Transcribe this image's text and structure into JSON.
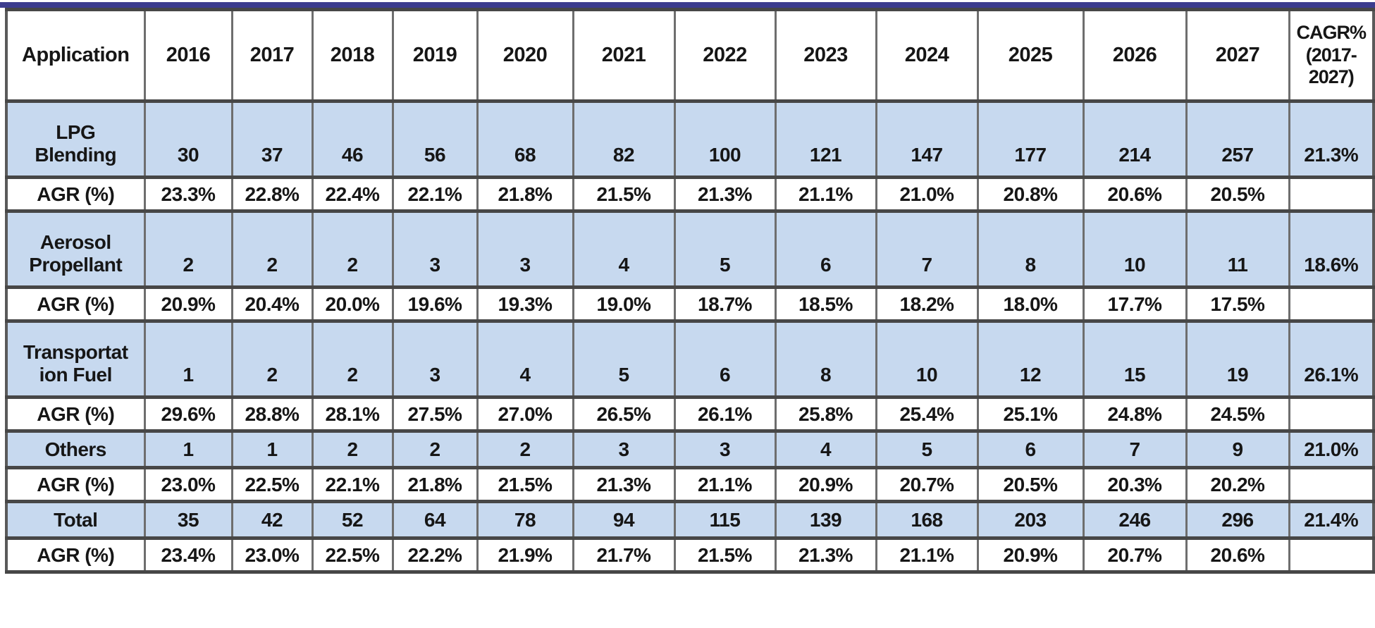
{
  "chart_data": {
    "type": "table",
    "title": "",
    "columns": [
      "Application",
      "2016",
      "2017",
      "2018",
      "2019",
      "2020",
      "2021",
      "2022",
      "2023",
      "2024",
      "2025",
      "2026",
      "2027",
      "CAGR%\n(2017-\n2027)"
    ],
    "rows": [
      {
        "label": "LPG\nBlending",
        "kind": "data",
        "values": [
          "30",
          "37",
          "46",
          "56",
          "68",
          "82",
          "100",
          "121",
          "147",
          "177",
          "214",
          "257"
        ],
        "cagr": "21.3%"
      },
      {
        "label": "AGR (%)",
        "kind": "agr",
        "values": [
          "23.3%",
          "22.8%",
          "22.4%",
          "22.1%",
          "21.8%",
          "21.5%",
          "21.3%",
          "21.1%",
          "21.0%",
          "20.8%",
          "20.6%",
          "20.5%"
        ],
        "cagr": ""
      },
      {
        "label": "Aerosol\nPropellant",
        "kind": "data",
        "values": [
          "2",
          "2",
          "2",
          "3",
          "3",
          "4",
          "5",
          "6",
          "7",
          "8",
          "10",
          "11"
        ],
        "cagr": "18.6%"
      },
      {
        "label": "AGR (%)",
        "kind": "agr",
        "values": [
          "20.9%",
          "20.4%",
          "20.0%",
          "19.6%",
          "19.3%",
          "19.0%",
          "18.7%",
          "18.5%",
          "18.2%",
          "18.0%",
          "17.7%",
          "17.5%"
        ],
        "cagr": ""
      },
      {
        "label": "Transportat\nion Fuel",
        "kind": "data",
        "values": [
          "1",
          "2",
          "2",
          "3",
          "4",
          "5",
          "6",
          "8",
          "10",
          "12",
          "15",
          "19"
        ],
        "cagr": "26.1%"
      },
      {
        "label": "AGR (%)",
        "kind": "agr",
        "values": [
          "29.6%",
          "28.8%",
          "28.1%",
          "27.5%",
          "27.0%",
          "26.5%",
          "26.1%",
          "25.8%",
          "25.4%",
          "25.1%",
          "24.8%",
          "24.5%"
        ],
        "cagr": ""
      },
      {
        "label": "Others",
        "kind": "short",
        "values": [
          "1",
          "1",
          "2",
          "2",
          "2",
          "3",
          "3",
          "4",
          "5",
          "6",
          "7",
          "9"
        ],
        "cagr": "21.0%"
      },
      {
        "label": "AGR (%)",
        "kind": "agr",
        "values": [
          "23.0%",
          "22.5%",
          "22.1%",
          "21.8%",
          "21.5%",
          "21.3%",
          "21.1%",
          "20.9%",
          "20.7%",
          "20.5%",
          "20.3%",
          "20.2%"
        ],
        "cagr": ""
      },
      {
        "label": "Total",
        "kind": "short",
        "values": [
          "35",
          "42",
          "52",
          "64",
          "78",
          "94",
          "115",
          "139",
          "168",
          "203",
          "246",
          "296"
        ],
        "cagr": "21.4%"
      },
      {
        "label": "AGR (%)",
        "kind": "agr",
        "values": [
          "23.4%",
          "23.0%",
          "22.5%",
          "22.2%",
          "21.9%",
          "21.7%",
          "21.5%",
          "21.3%",
          "21.1%",
          "20.9%",
          "20.7%",
          "20.6%"
        ],
        "cagr": ""
      }
    ]
  },
  "colors": {
    "row_blue": "#c7d9ef",
    "grid_horizontal": "#474747",
    "grid_vertical": "#6e6e6e",
    "top_bar": "#3c3c8e",
    "text": "#161616"
  }
}
